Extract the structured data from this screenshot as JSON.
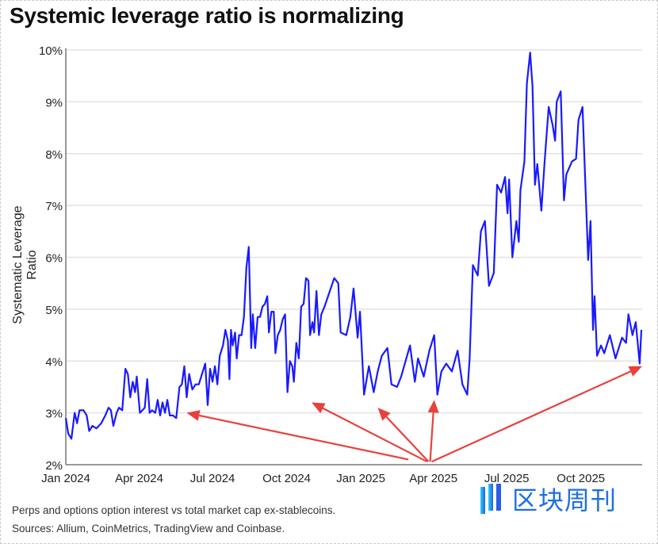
{
  "title": "Systemic leverage ratio is normalizing",
  "footer": {
    "note": "Perps and options option interest vs total market cap ex-stablecoins.",
    "sources": "Sources: Allium, CoinMetrics, TradingView and Coinbase."
  },
  "watermark": {
    "text": "区块周刊",
    "color": "#1f6fe0"
  },
  "chart_data": {
    "type": "line",
    "title": "Systemic leverage ratio is normalizing",
    "xlabel": "",
    "ylabel": "Systematic Leverage Ratio",
    "ylim": [
      2,
      10
    ],
    "xlim": [
      "2024-01-01",
      "2025-12-16"
    ],
    "yticks": [
      "2%",
      "3%",
      "4%",
      "5%",
      "6%",
      "7%",
      "8%",
      "9%",
      "10%"
    ],
    "xticks": [
      {
        "date": "2024-01-01",
        "label": "Jan 2024"
      },
      {
        "date": "2024-04-01",
        "label": "Apr 2024"
      },
      {
        "date": "2024-07-01",
        "label": "Jul 2024"
      },
      {
        "date": "2024-10-01",
        "label": "Oct 2024"
      },
      {
        "date": "2025-01-01",
        "label": "Jan 2025"
      },
      {
        "date": "2025-04-01",
        "label": "Apr 2025"
      },
      {
        "date": "2025-07-01",
        "label": "Jul 2025"
      },
      {
        "date": "2025-10-01",
        "label": "Oct 2025"
      }
    ],
    "grid": "horizontal",
    "line_color": "#1a1aff",
    "annotation_color": "#e8413c",
    "series": [
      {
        "x": [
          "2024-01-01",
          "2024-01-04",
          "2024-01-08",
          "2024-01-12",
          "2024-01-15",
          "2024-01-18",
          "2024-01-23",
          "2024-01-27",
          "2024-01-30",
          "2024-02-03",
          "2024-02-08",
          "2024-02-14",
          "2024-02-19",
          "2024-02-23",
          "2024-02-26",
          "2024-02-29",
          "2024-03-04",
          "2024-03-07",
          "2024-03-11",
          "2024-03-15",
          "2024-03-18",
          "2024-03-21",
          "2024-03-24",
          "2024-03-27",
          "2024-03-29",
          "2024-04-02",
          "2024-04-05",
          "2024-04-08",
          "2024-04-11",
          "2024-04-14",
          "2024-04-17",
          "2024-04-21",
          "2024-04-24",
          "2024-04-27",
          "2024-04-30",
          "2024-05-03",
          "2024-05-06",
          "2024-05-09",
          "2024-05-13",
          "2024-05-17",
          "2024-05-21",
          "2024-05-24",
          "2024-05-27",
          "2024-05-30",
          "2024-06-02",
          "2024-06-06",
          "2024-06-10",
          "2024-06-14",
          "2024-06-18",
          "2024-06-22",
          "2024-06-25",
          "2024-06-28",
          "2024-07-01",
          "2024-07-04",
          "2024-07-07",
          "2024-07-10",
          "2024-07-14",
          "2024-07-17",
          "2024-07-20",
          "2024-07-22",
          "2024-07-24",
          "2024-07-26",
          "2024-07-29",
          "2024-07-31",
          "2024-08-03",
          "2024-08-06",
          "2024-08-09",
          "2024-08-12",
          "2024-08-15",
          "2024-08-18",
          "2024-08-20",
          "2024-08-23",
          "2024-08-26",
          "2024-08-29",
          "2024-09-01",
          "2024-09-04",
          "2024-09-07",
          "2024-09-09",
          "2024-09-12",
          "2024-09-15",
          "2024-09-17",
          "2024-09-20",
          "2024-09-23",
          "2024-09-26",
          "2024-09-29",
          "2024-10-02",
          "2024-10-05",
          "2024-10-08",
          "2024-10-10",
          "2024-10-13",
          "2024-10-16",
          "2024-10-19",
          "2024-10-22",
          "2024-10-25",
          "2024-10-28",
          "2024-10-30",
          "2024-11-02",
          "2024-11-04",
          "2024-11-07",
          "2024-11-10",
          "2024-11-13",
          "2024-11-17",
          "2024-11-29",
          "2024-12-04",
          "2024-12-07",
          "2024-12-14",
          "2024-12-19",
          "2024-12-23",
          "2024-12-28",
          "2024-12-31",
          "2025-01-05",
          "2025-01-11",
          "2025-01-17",
          "2025-01-22",
          "2025-01-27",
          "2025-02-03",
          "2025-02-08",
          "2025-02-15",
          "2025-02-20",
          "2025-03-03",
          "2025-03-09",
          "2025-03-13",
          "2025-03-20",
          "2025-03-27",
          "2025-04-02",
          "2025-04-06",
          "2025-04-11",
          "2025-04-17",
          "2025-04-24",
          "2025-05-01",
          "2025-05-07",
          "2025-05-13",
          "2025-05-16",
          "2025-05-20",
          "2025-05-26",
          "2025-05-30",
          "2025-06-04",
          "2025-06-09",
          "2025-06-15",
          "2025-06-19",
          "2025-06-24",
          "2025-06-29",
          "2025-07-02",
          "2025-07-04",
          "2025-07-08",
          "2025-07-13",
          "2025-07-16",
          "2025-07-18",
          "2025-07-23",
          "2025-07-26",
          "2025-07-30",
          "2025-08-02",
          "2025-08-05",
          "2025-08-08",
          "2025-08-13",
          "2025-08-17",
          "2025-08-22",
          "2025-08-27",
          "2025-08-30",
          "2025-09-01",
          "2025-09-06",
          "2025-09-10",
          "2025-09-13",
          "2025-09-20",
          "2025-09-25",
          "2025-09-28",
          "2025-10-03",
          "2025-10-10",
          "2025-10-13",
          "2025-10-16",
          "2025-10-18",
          "2025-10-21",
          "2025-10-26",
          "2025-10-30",
          "2025-11-06",
          "2025-11-13",
          "2025-11-21",
          "2025-11-26",
          "2025-11-29",
          "2025-12-04",
          "2025-12-08",
          "2025-12-13",
          "2025-12-15"
        ],
        "y": [
          2.9,
          2.6,
          2.5,
          3.0,
          2.8,
          3.05,
          3.05,
          2.95,
          2.65,
          2.75,
          2.7,
          2.8,
          2.95,
          3.1,
          3.05,
          2.75,
          3.0,
          3.1,
          3.05,
          3.85,
          3.75,
          3.3,
          3.6,
          3.4,
          3.7,
          3.0,
          3.05,
          3.1,
          3.65,
          3.0,
          3.05,
          3.0,
          3.25,
          2.95,
          3.2,
          3.0,
          3.25,
          2.95,
          2.95,
          2.9,
          3.5,
          3.55,
          3.9,
          3.3,
          3.75,
          3.45,
          3.55,
          3.55,
          3.75,
          3.95,
          3.15,
          3.85,
          3.6,
          3.9,
          3.55,
          4.1,
          4.3,
          4.6,
          4.4,
          3.65,
          4.6,
          4.3,
          4.55,
          4.05,
          4.5,
          4.5,
          4.85,
          5.8,
          6.2,
          4.25,
          4.9,
          4.25,
          4.85,
          4.85,
          5.05,
          5.1,
          5.25,
          4.55,
          4.95,
          4.95,
          4.15,
          4.5,
          4.6,
          4.8,
          4.9,
          3.4,
          4.0,
          3.9,
          3.6,
          4.35,
          4.05,
          5.05,
          5.1,
          5.6,
          5.55,
          4.5,
          4.75,
          4.55,
          5.35,
          4.5,
          4.9,
          5.05,
          5.6,
          5.5,
          4.55,
          4.5,
          4.85,
          5.4,
          4.45,
          4.95,
          3.35,
          3.9,
          3.4,
          3.8,
          4.1,
          4.25,
          3.55,
          3.5,
          3.7,
          4.3,
          3.6,
          4.05,
          3.7,
          4.2,
          4.5,
          3.35,
          3.8,
          3.95,
          3.8,
          4.2,
          3.55,
          3.35,
          4.05,
          5.85,
          5.65,
          6.5,
          6.7,
          5.45,
          5.7,
          7.4,
          7.25,
          7.55,
          6.85,
          7.5,
          6.0,
          6.7,
          6.3,
          7.3,
          7.85,
          9.35,
          9.95,
          9.3,
          7.4,
          7.8,
          6.9,
          7.85,
          8.9,
          8.55,
          8.25,
          9.0,
          9.2,
          7.1,
          7.6,
          7.85,
          7.9,
          8.65,
          8.9,
          5.95,
          6.7,
          4.6,
          5.25,
          4.1,
          4.3,
          4.15,
          4.5,
          4.05,
          4.45,
          4.35,
          4.9,
          4.5,
          4.75,
          3.95,
          4.6
        ]
      }
    ],
    "annotations": [
      {
        "type": "arrow",
        "from": [
          "2025-03-01",
          2.1
        ],
        "to": [
          "2024-05-30",
          3.0
        ]
      },
      {
        "type": "arrow",
        "from": [
          "2025-03-24",
          2.06
        ],
        "to": [
          "2024-11-01",
          3.2
        ]
      },
      {
        "type": "arrow",
        "from": [
          "2025-03-26",
          2.06
        ],
        "to": [
          "2025-01-22",
          3.1
        ]
      },
      {
        "type": "arrow",
        "from": [
          "2025-03-28",
          2.06
        ],
        "to": [
          "2025-04-02",
          3.25
        ]
      },
      {
        "type": "arrow",
        "from": [
          "2025-03-30",
          2.06
        ],
        "to": [
          "2025-12-16",
          3.9
        ]
      }
    ]
  }
}
